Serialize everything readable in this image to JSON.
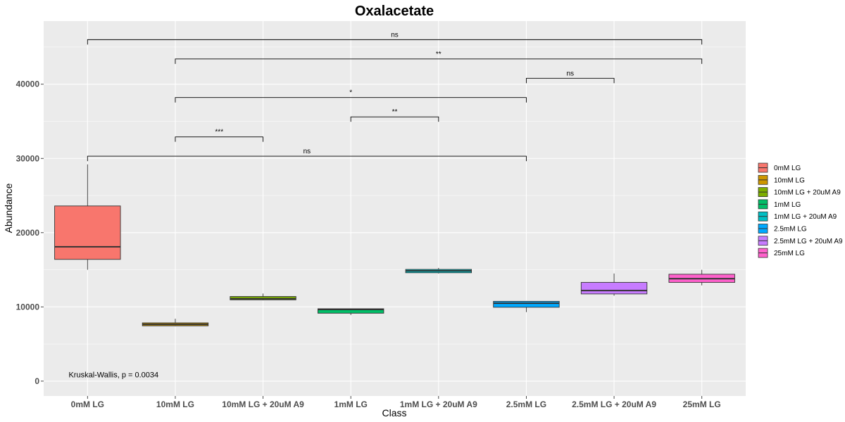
{
  "chart_data": {
    "type": "box",
    "title": "Oxalacetate",
    "xlabel": "Class",
    "ylabel": "Abundance",
    "ylim": [
      -2000,
      48500
    ],
    "yticks": [
      0,
      10000,
      20000,
      30000,
      40000
    ],
    "categories": [
      "0mM LG",
      "10mM LG",
      "10mM LG + 20uM A9",
      "1mM LG",
      "1mM LG + 20uM A9",
      "2.5mM LG",
      "2.5mM LG + 20uM A9",
      "25mM LG"
    ],
    "boxes": [
      {
        "category": "0mM LG",
        "min": 15000,
        "q1": 16400,
        "median": 18100,
        "q3": 23600,
        "max": 29200,
        "color": "#F8766D"
      },
      {
        "category": "10mM LG",
        "min": 7400,
        "q1": 7450,
        "median": 7650,
        "q3": 7850,
        "max": 8400,
        "color": "#CD9600"
      },
      {
        "category": "10mM LG + 20uM A9",
        "min": 10900,
        "q1": 10950,
        "median": 11100,
        "q3": 11400,
        "max": 11800,
        "color": "#7CAE00"
      },
      {
        "category": "1mM LG",
        "min": 8900,
        "q1": 9150,
        "median": 9650,
        "q3": 9750,
        "max": 9800,
        "color": "#00BE67"
      },
      {
        "category": "1mM LG + 20uM A9",
        "min": 14500,
        "q1": 14600,
        "median": 14850,
        "q3": 15050,
        "max": 15250,
        "color": "#00BFC4"
      },
      {
        "category": "2.5mM LG",
        "min": 9300,
        "q1": 9950,
        "median": 10500,
        "q3": 10750,
        "max": 10800,
        "color": "#00A9FF"
      },
      {
        "category": "2.5mM LG + 20uM A9",
        "min": 11500,
        "q1": 11750,
        "median": 12200,
        "q3": 13300,
        "max": 14500,
        "color": "#C77CFF"
      },
      {
        "category": "25mM LG",
        "min": 12900,
        "q1": 13300,
        "median": 13800,
        "q3": 14400,
        "max": 15000,
        "color": "#FF61CC"
      }
    ],
    "comparisons": [
      {
        "from": "0mM LG",
        "to": "25mM LG",
        "y": 46000,
        "label": "ns"
      },
      {
        "from": "10mM LG",
        "to": "25mM LG",
        "y": 43400,
        "label": "**"
      },
      {
        "from": "2.5mM LG",
        "to": "2.5mM LG + 20uM A9",
        "y": 40800,
        "label": "ns"
      },
      {
        "from": "10mM LG",
        "to": "2.5mM LG",
        "y": 38200,
        "label": "*"
      },
      {
        "from": "1mM LG",
        "to": "1mM LG + 20uM A9",
        "y": 35600,
        "label": "**"
      },
      {
        "from": "10mM LG",
        "to": "10mM LG + 20uM A9",
        "y": 32900,
        "label": "***"
      },
      {
        "from": "0mM LG",
        "to": "2.5mM LG",
        "y": 30300,
        "label": "ns"
      }
    ],
    "annotation": {
      "text": "Kruskal-Wallis, p = 0.0034",
      "x": "0mM LG",
      "y": 500
    },
    "legend": {
      "placement": "right",
      "entries": [
        "0mM LG",
        "10mM LG",
        "10mM LG + 20uM A9",
        "1mM LG",
        "1mM LG + 20uM A9",
        "2.5mM LG",
        "2.5mM LG + 20uM A9",
        "25mM LG"
      ]
    },
    "grid": true,
    "panel_color": "#EBEBEB"
  }
}
